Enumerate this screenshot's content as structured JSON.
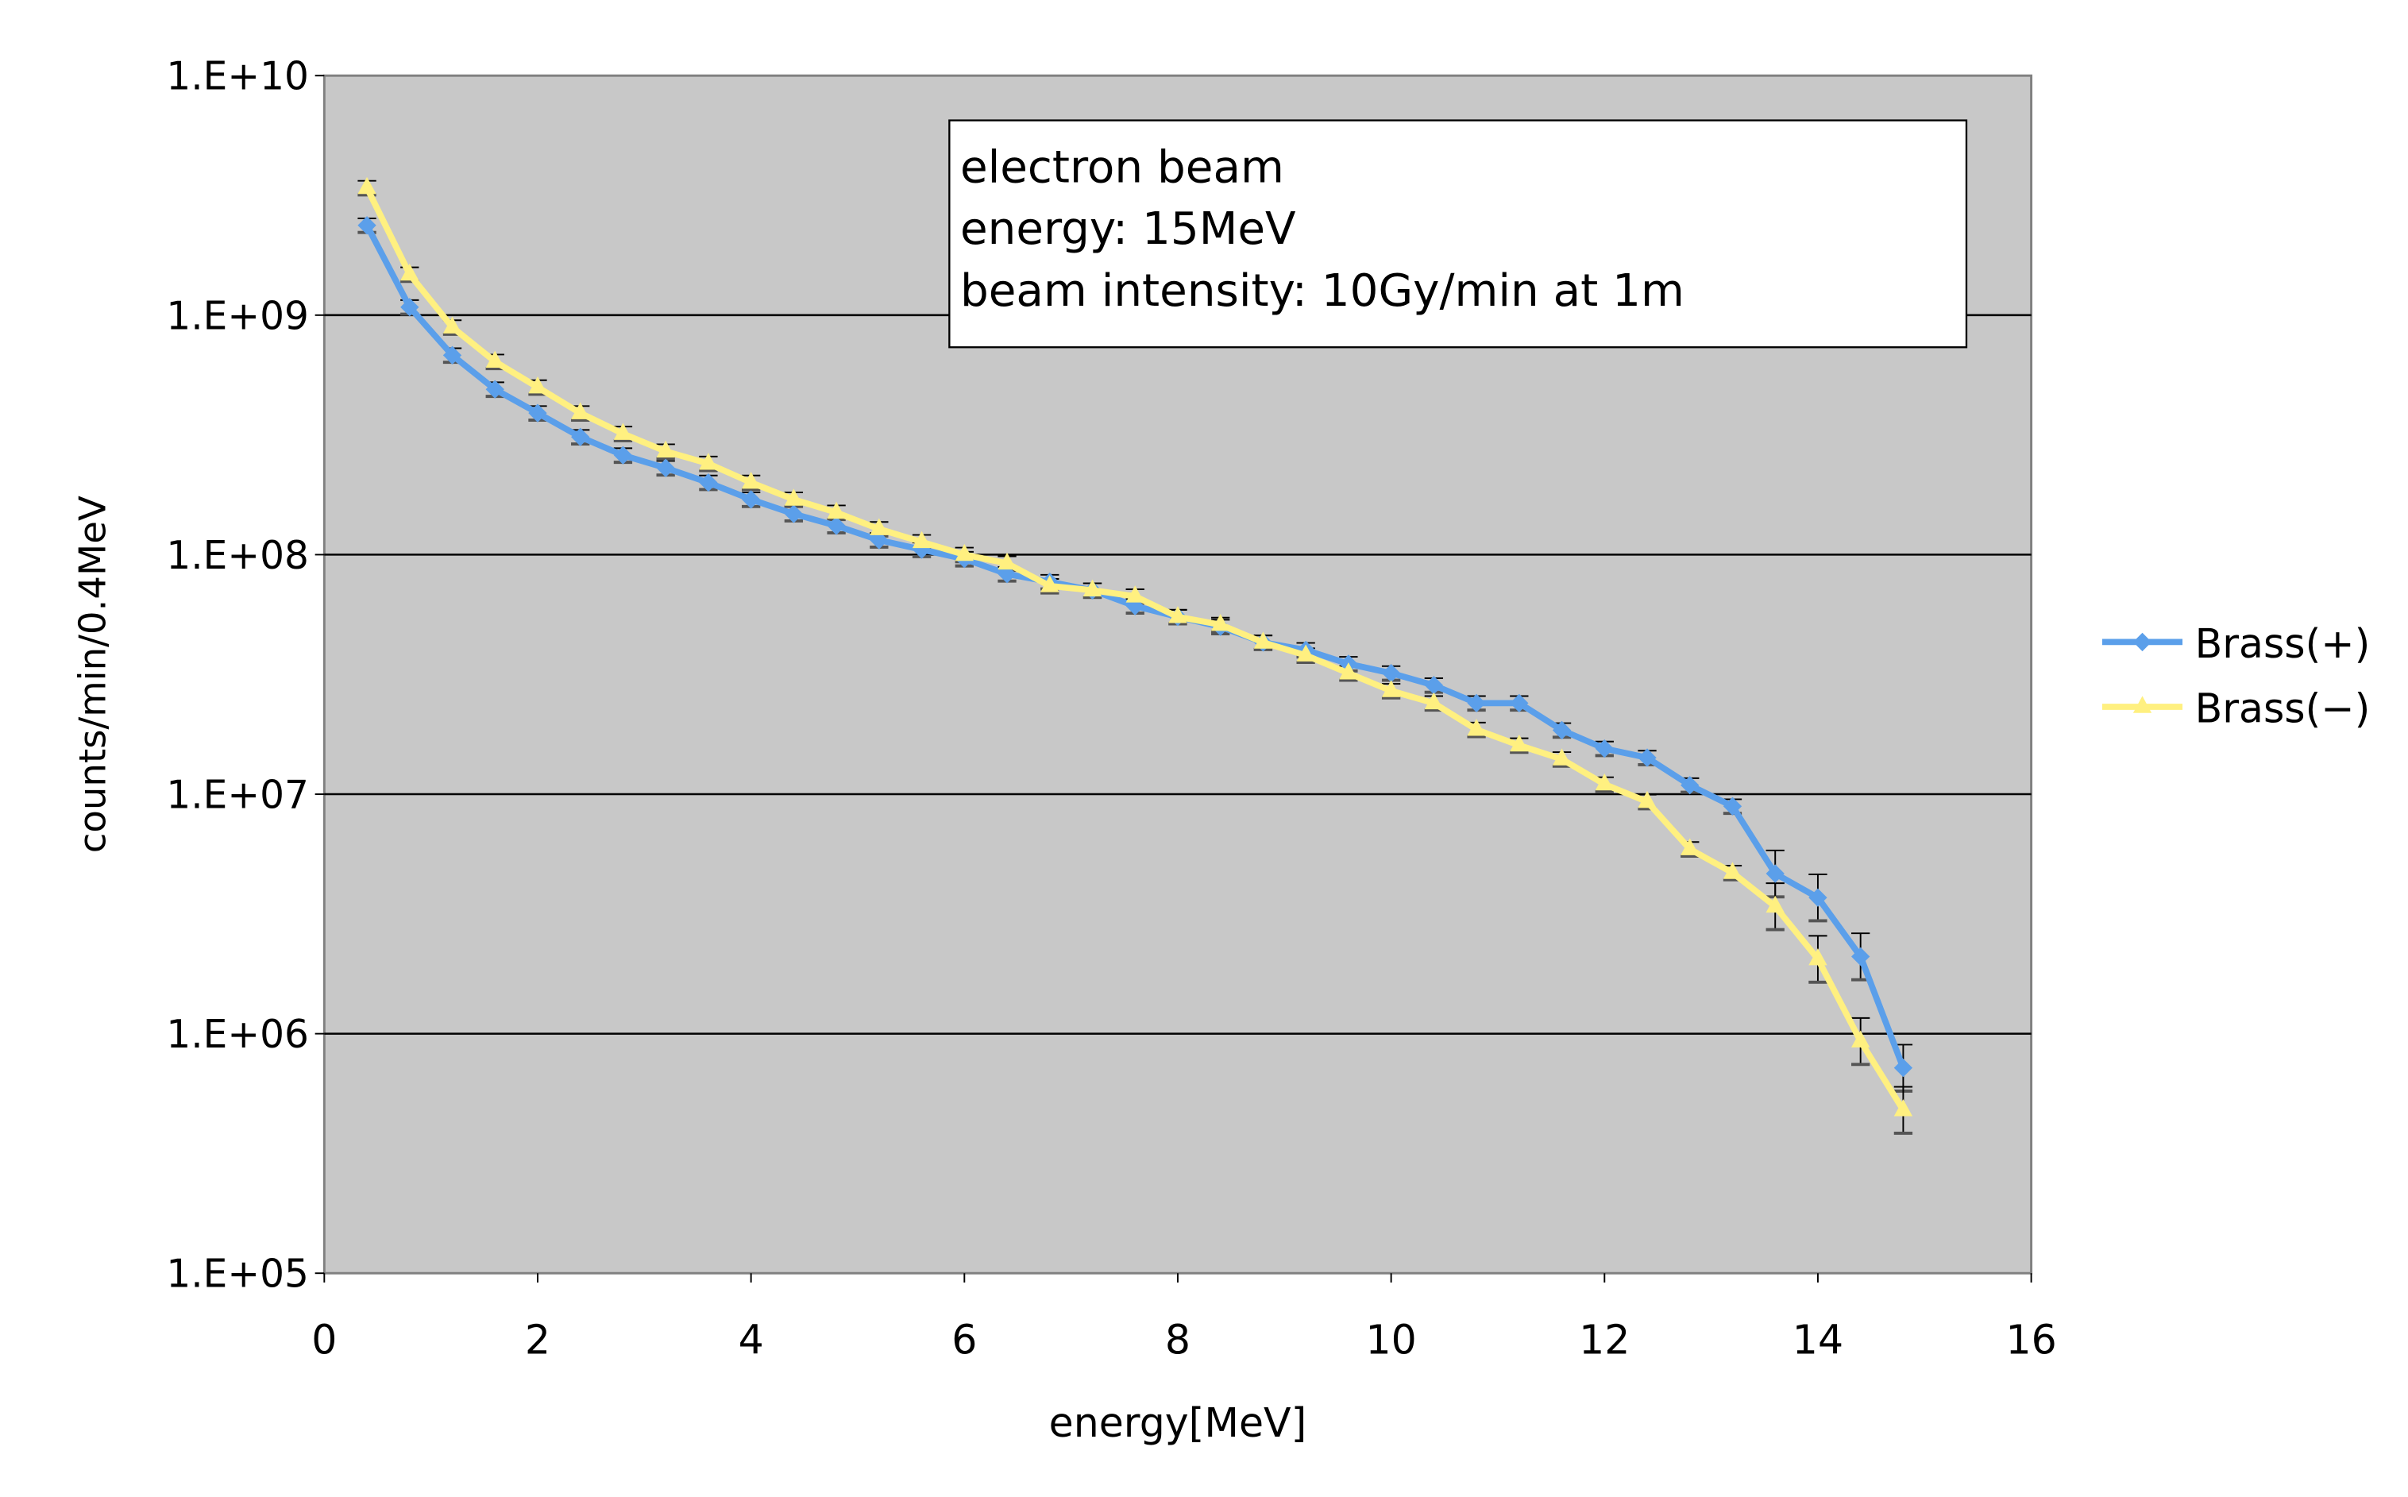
{
  "chart_data": {
    "type": "line",
    "title": "",
    "xlabel": "energy[MeV]",
    "ylabel": "counts/min/0.4MeV",
    "xlim": [
      0,
      16
    ],
    "ylim": [
      100000,
      10000000000
    ],
    "yscale": "log",
    "xticks": [
      "0",
      "2",
      "4",
      "6",
      "8",
      "10",
      "12",
      "14",
      "16"
    ],
    "yticks": [
      "1.E+05",
      "1.E+06",
      "1.E+07",
      "1.E+08",
      "1.E+09",
      "1.E+10"
    ],
    "grid": "horizontal major",
    "legend_position": "right",
    "annotation": [
      "electron beam",
      "energy: 15MeV",
      "beam intensity: 10Gy/min at 1m"
    ],
    "x": [
      0.4,
      0.8,
      1.2,
      1.6,
      2.0,
      2.4,
      2.8,
      3.2,
      3.6,
      4.0,
      4.4,
      4.8,
      5.2,
      5.6,
      6.0,
      6.4,
      6.8,
      7.2,
      7.6,
      8.0,
      8.4,
      8.8,
      9.2,
      9.6,
      10.0,
      10.4,
      10.8,
      11.2,
      11.6,
      12.0,
      12.4,
      12.8,
      13.2,
      13.6,
      14.0,
      14.4,
      14.8
    ],
    "series": [
      {
        "name": "Brass(+)",
        "color": "#5B9FEA",
        "marker": "diamond",
        "values": [
          2370000000.0,
          1080000000.0,
          680000000.0,
          490000000.0,
          390000000.0,
          310000000.0,
          260000000.0,
          230000000.0,
          200000000.0,
          170000000.0,
          148000000.0,
          132000000.0,
          115000000.0,
          105000000.0,
          96000000.0,
          83000000.0,
          77000000.0,
          71000000.0,
          61000000.0,
          55000000.0,
          50000000.0,
          43000000.0,
          40000000.0,
          35000000.0,
          32000000.0,
          28500000.0,
          24000000.0,
          24000000.0,
          18500000.0,
          15500000.0,
          14200000.0,
          10900000.0,
          8900000.0,
          4660000.0,
          3700000.0,
          2100000.0,
          720000.0
        ]
      },
      {
        "name": "Brass(−)",
        "color": "#FFF080",
        "marker": "triangle",
        "values": [
          3400000000.0,
          1480000000.0,
          890000000.0,
          640000000.0,
          500000000.0,
          390000000.0,
          320000000.0,
          270000000.0,
          240000000.0,
          200000000.0,
          170000000.0,
          150000000.0,
          128000000.0,
          113000000.0,
          100000000.0,
          92000000.0,
          74000000.0,
          71000000.0,
          67000000.0,
          55000000.0,
          51000000.0,
          43000000.0,
          38000000.0,
          32000000.0,
          27000000.0,
          24000000.0,
          18600000.0,
          16000000.0,
          14000000.0,
          11000000.0,
          9300000.0,
          5900000.0,
          4700000.0,
          3400000.0,
          2050000.0,
          930000.0,
          480000.0
        ]
      }
    ]
  }
}
